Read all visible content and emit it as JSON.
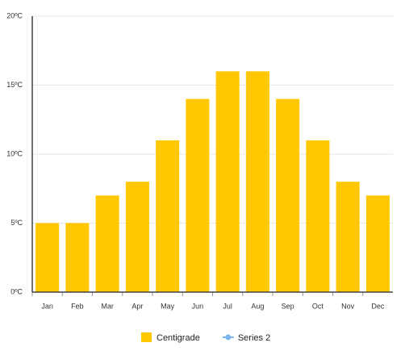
{
  "chart_data": {
    "type": "bar",
    "categories": [
      "Jan",
      "Feb",
      "Mar",
      "Apr",
      "May",
      "Jun",
      "Jul",
      "Aug",
      "Sep",
      "Oct",
      "Nov",
      "Dec"
    ],
    "series": [
      {
        "name": "Centigrade",
        "color": "#ffc800",
        "values": [
          5,
          5,
          7,
          8,
          11,
          14,
          16,
          16,
          14,
          11,
          8,
          7
        ]
      },
      {
        "name": "Series 2",
        "color": "#7cb5ec",
        "values": [
          null,
          null,
          null,
          null,
          null,
          null,
          null,
          null,
          null,
          null,
          null,
          null
        ]
      }
    ],
    "ylim": [
      0,
      20
    ],
    "yticks": [
      {
        "value": 0,
        "label": "0ºC"
      },
      {
        "value": 5,
        "label": "5ºC"
      },
      {
        "value": 10,
        "label": "10ºC"
      },
      {
        "value": 15,
        "label": "15ºC"
      },
      {
        "value": 20,
        "label": "20ºC"
      }
    ],
    "grid": true
  }
}
